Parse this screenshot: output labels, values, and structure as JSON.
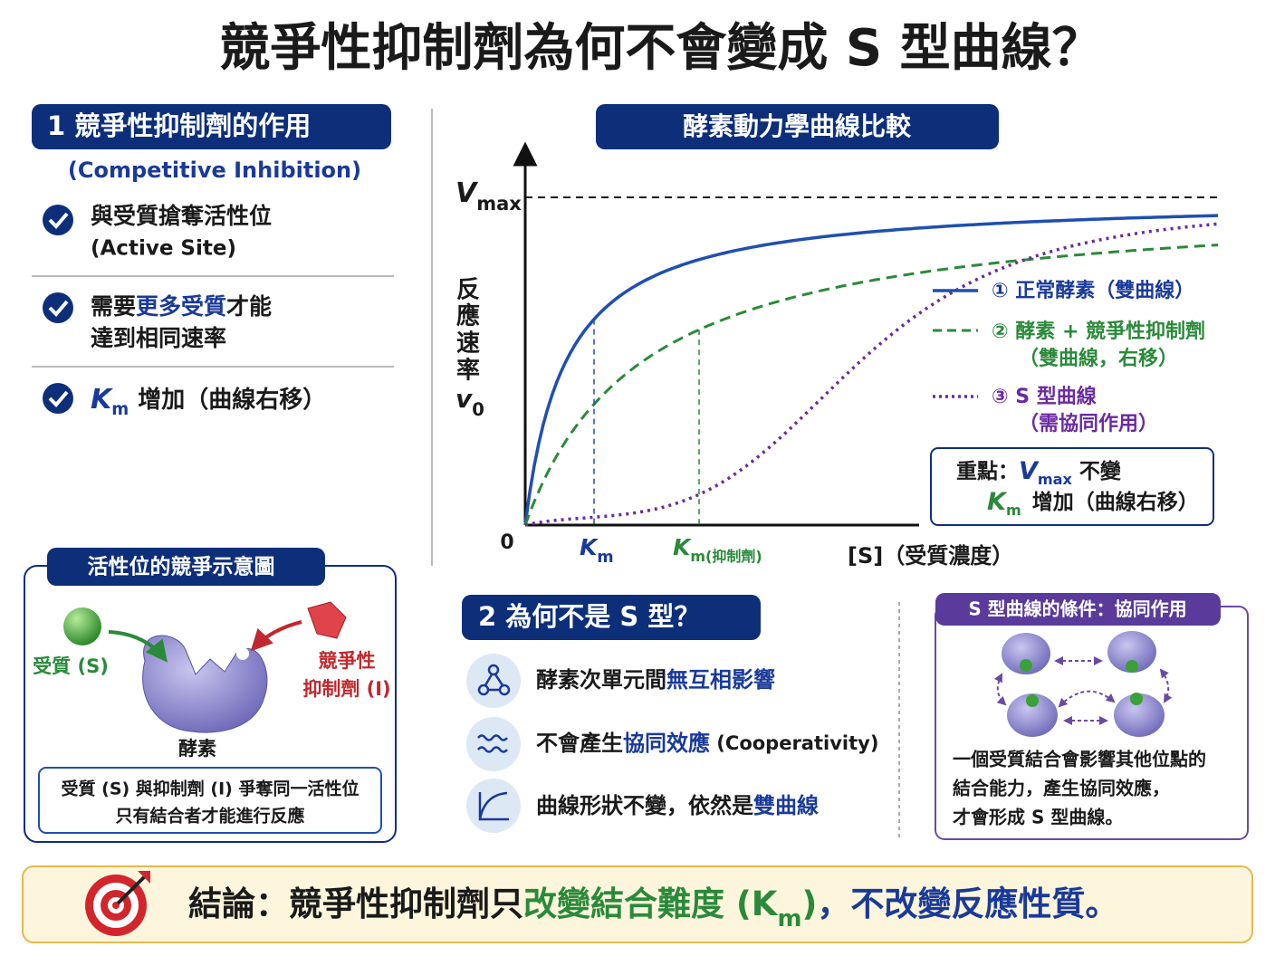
{
  "title": "競爭性抑制劑為何不會變成 S 型曲線？",
  "section1": {
    "heading": "1  競爭性抑制劑的作用",
    "subheading": "(Competitive Inhibition)",
    "item1": {
      "line1": "與受質搶奪活性位",
      "line2": "(Active Site)"
    },
    "item2": {
      "pre": "需要",
      "highlight": "更多受質",
      "post": "才能",
      "line2": "達到相同速率"
    },
    "item3": {
      "symbol": "K",
      "subscript": "m",
      "text": "增加（曲線右移）"
    }
  },
  "chart": {
    "title": "酵素動力學曲線比較",
    "y_label": [
      "反",
      "應",
      "速",
      "率"
    ],
    "y_symbol": "v",
    "y_subscript": "0",
    "vmax_symbol": "V",
    "vmax_subscript": "max",
    "origin": "0",
    "km_symbol": "K",
    "km_subscript": "m",
    "km_inhibitor_subscript": "m(抑制劑)",
    "x_label": "[S]（受質濃度）",
    "legend": [
      {
        "label": "① 正常酵素（雙曲線）"
      },
      {
        "label": "② 酵素 + 競爭性抑制劑",
        "note": "（雙曲線，右移）"
      },
      {
        "label": "③ S 型曲線",
        "note": "（需協同作用）"
      }
    ],
    "key": {
      "prefix": "重點：",
      "vmax_symbol": "V",
      "vmax_subscript": "max",
      "vmax_text": "不變",
      "km_symbol": "K",
      "km_subscript": "m",
      "km_text": "增加（曲線右移）"
    }
  },
  "diagram": {
    "heading": "活性位的競爭示意圖",
    "substrate": "受質 (S)",
    "inhibitor": [
      "競爭性",
      "抑制劑 (I)"
    ],
    "enzyme": "酵素",
    "note": [
      "受質 (S) 與抑制劑 (I) 爭奪同一活性位",
      "只有結合者才能進行反應"
    ]
  },
  "section2": {
    "heading": "2  為何不是 S 型？",
    "items": [
      {
        "pre": "酵素次單元間",
        "highlight": "無互相影響"
      },
      {
        "pre": "不會產生",
        "highlight": "協同效應",
        "post": " (Cooperativity)"
      },
      {
        "pre": "曲線形狀不變，依然是",
        "highlight": "雙曲線"
      }
    ]
  },
  "cooperativity": {
    "heading": "S 型曲線的條件：協同作用",
    "text": [
      "一個受質結合會影響其他位點的",
      "結合能力，產生協同效應，",
      "才會形成 S 型曲線。"
    ]
  },
  "conclusion": {
    "prefix": "結論：競爭性抑制劑只",
    "highlight": "改變結合難度 (K",
    "subscript": "m",
    "highlight_end": ")",
    "suffix": "，不改變反應性質。"
  }
}
